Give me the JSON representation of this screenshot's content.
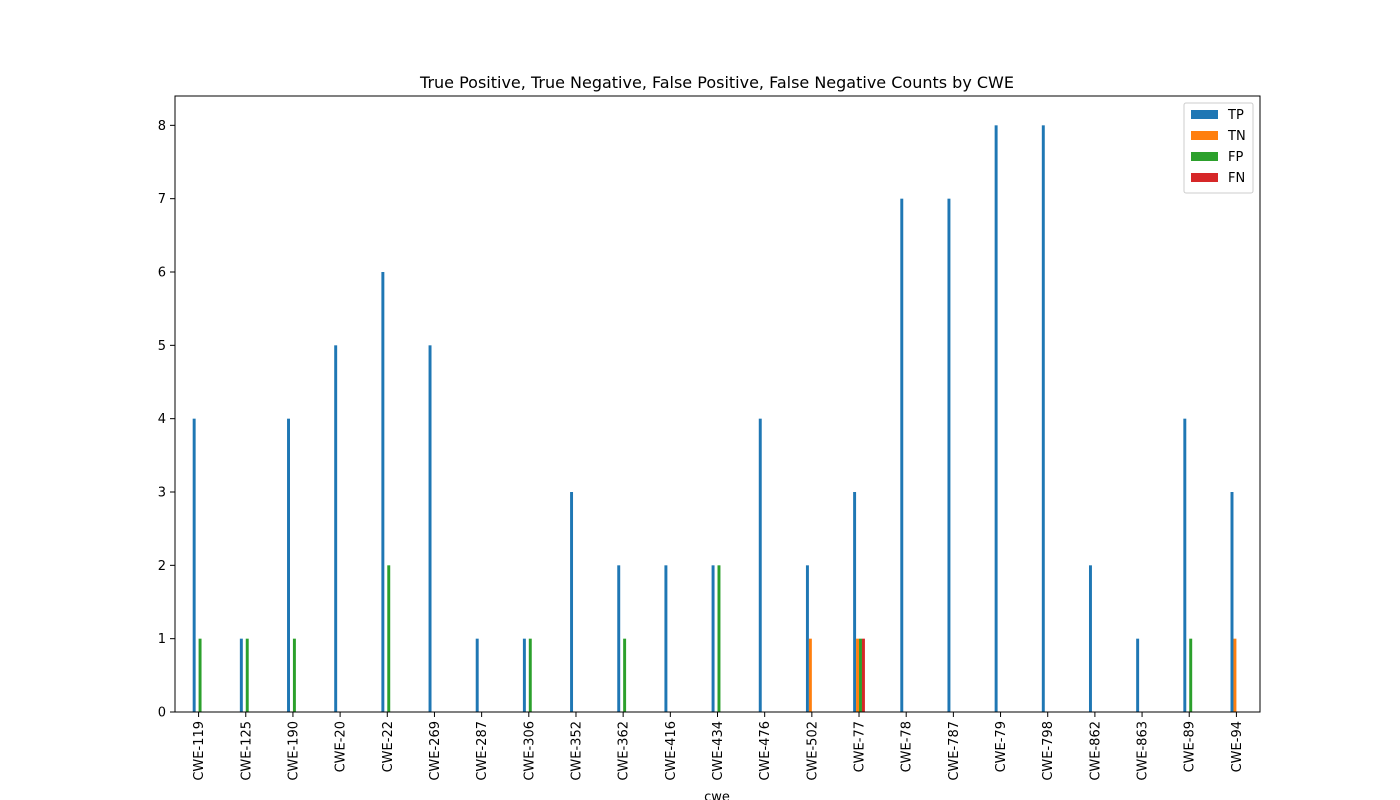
{
  "chart_data": {
    "type": "bar",
    "title": "True Positive, True Negative, False Positive, False Negative Counts by CWE",
    "xlabel": "cwe",
    "ylabel": "",
    "ylim": [
      0,
      8.4
    ],
    "yticks": [
      0,
      1,
      2,
      3,
      4,
      5,
      6,
      7,
      8
    ],
    "grid": false,
    "legend_position": "top-right",
    "categories": [
      "CWE-119",
      "CWE-125",
      "CWE-190",
      "CWE-20",
      "CWE-22",
      "CWE-269",
      "CWE-287",
      "CWE-306",
      "CWE-352",
      "CWE-362",
      "CWE-416",
      "CWE-434",
      "CWE-476",
      "CWE-502",
      "CWE-77",
      "CWE-78",
      "CWE-787",
      "CWE-79",
      "CWE-798",
      "CWE-862",
      "CWE-863",
      "CWE-89",
      "CWE-94"
    ],
    "series": [
      {
        "name": "TP",
        "color": "#1f77b4",
        "values": [
          4,
          1,
          4,
          5,
          6,
          5,
          1,
          1,
          3,
          2,
          2,
          2,
          4,
          2,
          3,
          7,
          7,
          8,
          8,
          2,
          1,
          4,
          3
        ]
      },
      {
        "name": "TN",
        "color": "#ff7f0e",
        "values": [
          0,
          0,
          0,
          0,
          0,
          0,
          0,
          0,
          0,
          0,
          0,
          0,
          0,
          1,
          1,
          0,
          0,
          0,
          0,
          0,
          0,
          0,
          1
        ]
      },
      {
        "name": "FP",
        "color": "#2ca02c",
        "values": [
          1,
          1,
          1,
          0,
          2,
          0,
          0,
          1,
          0,
          1,
          0,
          2,
          0,
          0,
          1,
          0,
          0,
          0,
          0,
          0,
          0,
          1,
          0
        ]
      },
      {
        "name": "FN",
        "color": "#d62728",
        "values": [
          0,
          0,
          0,
          0,
          0,
          0,
          0,
          0,
          0,
          0,
          0,
          0,
          0,
          0,
          1,
          0,
          0,
          0,
          0,
          0,
          0,
          0,
          0
        ]
      }
    ]
  }
}
